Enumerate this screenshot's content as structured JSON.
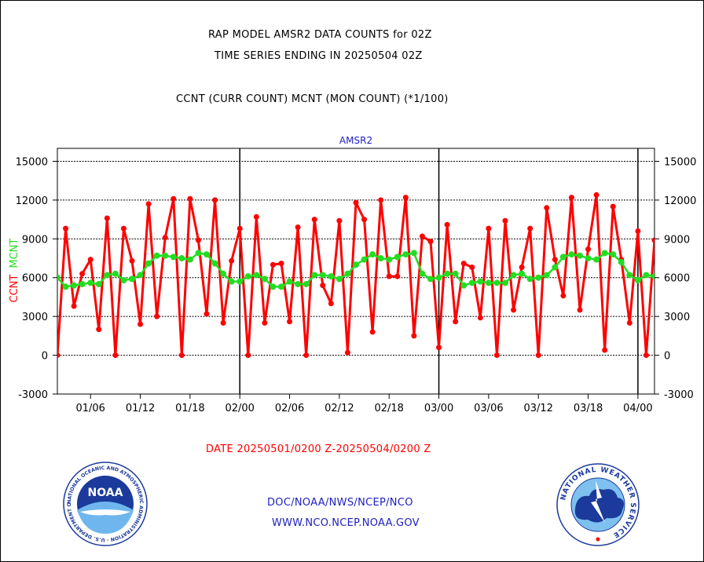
{
  "header": {
    "title_line1": "RAP MODEL AMSR2 DATA COUNTS for 02Z",
    "title_line2": "TIME SERIES ENDING IN 20250504 02Z",
    "subtitle": "CCNT (CURR COUNT) MCNT (MON COUNT) (*1/100)"
  },
  "footer": {
    "date_range": "DATE 20250501/0200 Z-20250504/0200 Z",
    "link1": "DOC/NOAA/NWS/NCEP/NCO",
    "link2": "WWW.NCO.NCEP.NOAA.GOV"
  },
  "logos": {
    "noaa_text": "NOAA",
    "noaa_ring": "NATIONAL OCEANIC AND ATMOSPHERIC ADMINISTRATION · U.S. DEPARTMENT OF COMMERCE ·",
    "nws_ring": "NATIONAL WEATHER SERVICE"
  },
  "colors": {
    "ccnt": "#ff0000",
    "mcnt": "#22dd22",
    "title": "#000000",
    "panel_label": "#2020c0",
    "date_label": "#ff0000"
  },
  "chart_data": {
    "type": "line",
    "panel_label": "AMSR2",
    "ylabel_left": [
      "CCNT",
      "MCNT"
    ],
    "ylim": [
      -3000,
      16000
    ],
    "yticks": [
      -3000,
      0,
      3000,
      6000,
      9000,
      12000,
      15000
    ],
    "x_tick_labels": [
      "01/06",
      "01/12",
      "01/18",
      "02/00",
      "02/06",
      "02/12",
      "02/18",
      "03/00",
      "03/06",
      "03/12",
      "03/18",
      "04/00"
    ],
    "x_tick_hours": [
      6,
      12,
      18,
      24,
      30,
      36,
      42,
      48,
      54,
      60,
      66,
      72
    ],
    "day_boundaries_hours": [
      24,
      48,
      72
    ],
    "grid": true,
    "x_start_hours": 2,
    "x_step_hours": 1,
    "series": [
      {
        "name": "CCNT",
        "values": [
          0,
          9800,
          3800,
          6300,
          7400,
          2000,
          10600,
          0,
          9800,
          7300,
          2400,
          11700,
          3000,
          9100,
          12100,
          0,
          12100,
          8900,
          3200,
          12000,
          2500,
          7300,
          9800,
          0,
          10700,
          2500,
          7000,
          7100,
          2600,
          9900,
          0,
          10500,
          5400,
          4000,
          10400,
          200,
          11800,
          10500,
          1800,
          12000,
          6100,
          6100,
          12200,
          1500,
          9200,
          8800,
          600,
          10100,
          2600,
          7100,
          6800,
          2900,
          9800,
          0,
          10400,
          3500,
          6800,
          9800,
          0,
          11400,
          7400,
          4600,
          12200,
          3500,
          8200,
          12400,
          400,
          11500,
          7400,
          2500,
          9600,
          0,
          8900
        ]
      },
      {
        "name": "MCNT",
        "values": [
          6000,
          5300,
          5400,
          5500,
          5600,
          5500,
          6200,
          6300,
          5800,
          5900,
          6200,
          7100,
          7700,
          7700,
          7600,
          7500,
          7400,
          7900,
          7800,
          7100,
          6300,
          5700,
          5700,
          6100,
          6200,
          5900,
          5300,
          5300,
          5700,
          5500,
          5500,
          6200,
          6200,
          6100,
          5900,
          6300,
          7000,
          7400,
          7800,
          7500,
          7400,
          7600,
          7800,
          7900,
          6300,
          5900,
          6000,
          6300,
          6300,
          5400,
          5600,
          5700,
          5600,
          5600,
          5600,
          6200,
          6300,
          5900,
          6000,
          6200,
          6800,
          7600,
          7800,
          7700,
          7500,
          7400,
          7900,
          7800,
          7200,
          6200,
          5800,
          6200,
          6100
        ]
      }
    ]
  }
}
